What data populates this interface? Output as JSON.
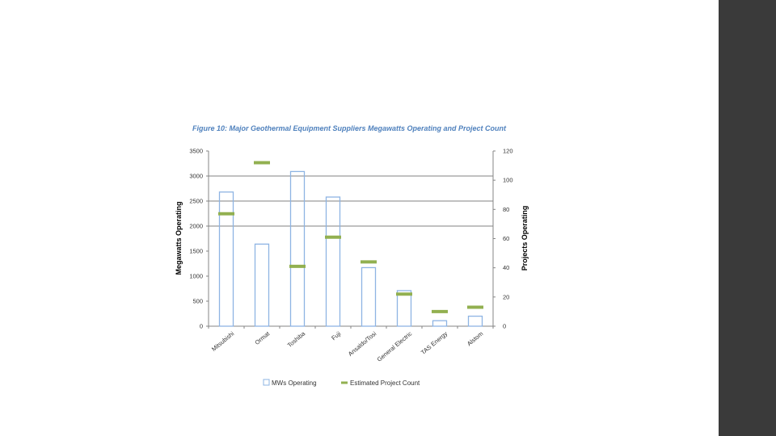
{
  "colors": {
    "title": "#4f81bd",
    "bar_stroke": "#8eb4e3",
    "marker": "#92b050",
    "grid": "#808080",
    "sidebar": "#3a3a3a"
  },
  "chart_data": {
    "type": "bar",
    "title": "Figure 10: Major Geothermal Equipment Suppliers Megawatts Operating and Project Count",
    "categories": [
      "Mitsubishi",
      "Ormat",
      "Toshiba",
      "Fuji",
      "Ansaldo/Tosi",
      "General Electric",
      "TAS Energy",
      "Alstom"
    ],
    "series": [
      {
        "name": "MWs Operating",
        "axis": "left",
        "style": "hollow-bar",
        "values": [
          2680,
          1640,
          3090,
          2580,
          1170,
          710,
          110,
          200
        ]
      },
      {
        "name": "Estimated Project Count",
        "axis": "right",
        "style": "dash-marker",
        "values": [
          77,
          112,
          41,
          61,
          44,
          22,
          10,
          13
        ]
      }
    ],
    "ylabel": "Megawatts Operating",
    "y2label": "Projects Operating",
    "ylim": [
      0,
      3500
    ],
    "y2lim": [
      0,
      120
    ],
    "yticks": [
      0,
      500,
      1000,
      1500,
      2000,
      2500,
      3000,
      3500
    ],
    "y2ticks": [
      0,
      20,
      40,
      60,
      80,
      100,
      120
    ],
    "gridlines": [
      2000,
      2500,
      3000
    ],
    "legend_position": "bottom"
  }
}
